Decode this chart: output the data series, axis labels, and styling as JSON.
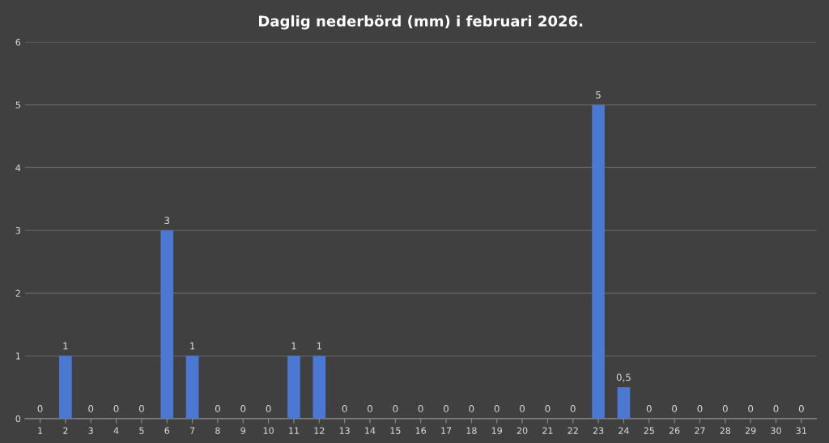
{
  "chart_data": {
    "type": "bar",
    "title": "Daglig nederbörd (mm) i februari 2026.",
    "categories": [
      "1",
      "2",
      "3",
      "4",
      "5",
      "6",
      "7",
      "8",
      "9",
      "10",
      "11",
      "12",
      "13",
      "14",
      "15",
      "16",
      "17",
      "18",
      "19",
      "20",
      "21",
      "22",
      "23",
      "24",
      "25",
      "26",
      "27",
      "28",
      "29",
      "30",
      "31"
    ],
    "values": [
      0,
      1,
      0,
      0,
      0,
      3,
      1,
      0,
      0,
      0,
      1,
      1,
      0,
      0,
      0,
      0,
      0,
      0,
      0,
      0,
      0,
      0,
      5,
      0.5,
      0,
      0,
      0,
      0,
      0,
      0,
      0
    ],
    "value_labels": [
      "0",
      "1",
      "0",
      "0",
      "0",
      "3",
      "1",
      "0",
      "0",
      "0",
      "1",
      "1",
      "0",
      "0",
      "0",
      "0",
      "0",
      "0",
      "0",
      "0",
      "0",
      "0",
      "5",
      "0,5",
      "0",
      "0",
      "0",
      "0",
      "0",
      "0",
      "0"
    ],
    "color": "#4a78d2",
    "ylim": [
      0,
      6
    ],
    "yticks": [
      0,
      1,
      2,
      3,
      4,
      5,
      6
    ],
    "grid": "y"
  }
}
